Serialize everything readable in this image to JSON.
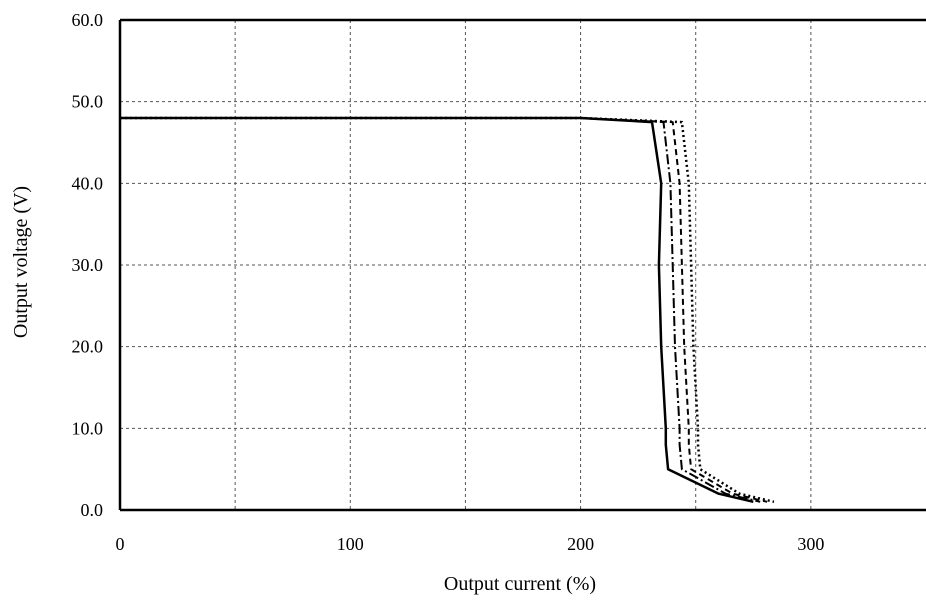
{
  "chart_data": {
    "type": "line",
    "title": "",
    "xlabel": "Output current (%)",
    "ylabel": "Output voltage (V)",
    "xlim": [
      0,
      350
    ],
    "ylim": [
      0,
      60
    ],
    "grid": true,
    "x_ticks": [
      {
        "value": 0,
        "label": "0"
      },
      {
        "value": 100,
        "label": "100"
      },
      {
        "value": 200,
        "label": "200"
      },
      {
        "value": 300,
        "label": "300"
      }
    ],
    "y_ticks": [
      {
        "value": 0,
        "label": "0.0"
      },
      {
        "value": 10,
        "label": "10.0"
      },
      {
        "value": 20,
        "label": "20.0"
      },
      {
        "value": 30,
        "label": "30.0"
      },
      {
        "value": 40,
        "label": "40.0"
      },
      {
        "value": 50,
        "label": "50.0"
      },
      {
        "value": 60,
        "label": "60.0"
      }
    ],
    "series": [
      {
        "style": "solid",
        "x": [
          0,
          200,
          231,
          235,
          234,
          235,
          236,
          237,
          237,
          238,
          260,
          275
        ],
        "y": [
          48.0,
          48.0,
          47.5,
          40,
          30,
          20,
          15,
          10,
          8,
          5,
          2,
          1
        ]
      },
      {
        "style": "dashdot",
        "x": [
          0,
          200,
          236,
          239,
          240,
          241,
          242,
          243,
          243,
          244,
          263,
          278
        ],
        "y": [
          48.0,
          48.0,
          47.5,
          40,
          30,
          20,
          15,
          10,
          8,
          5,
          2,
          1
        ]
      },
      {
        "style": "dashed",
        "x": [
          0,
          200,
          240,
          243,
          244,
          245,
          246,
          247,
          247,
          248,
          266,
          281
        ],
        "y": [
          48.0,
          48.0,
          47.5,
          40,
          30,
          20,
          15,
          10,
          8,
          5,
          2,
          1
        ]
      },
      {
        "style": "dotted",
        "x": [
          0,
          200,
          244,
          247,
          248,
          249,
          250,
          251,
          251,
          252,
          269,
          284
        ],
        "y": [
          48.0,
          48.0,
          47.5,
          40,
          30,
          20,
          15,
          10,
          8,
          5,
          2,
          1
        ]
      }
    ]
  }
}
